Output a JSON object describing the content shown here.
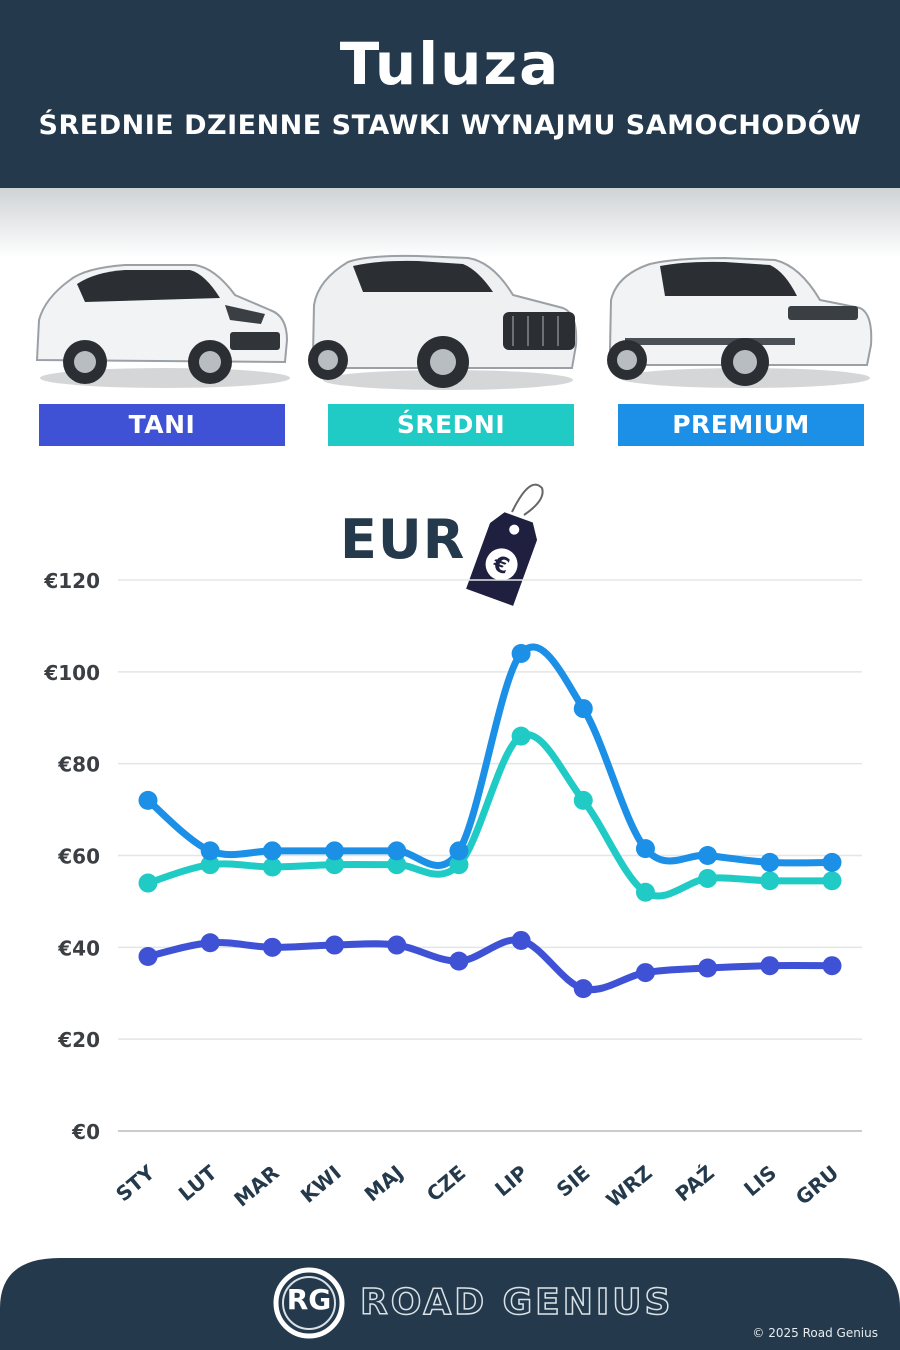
{
  "header": {
    "title": "Tuluza",
    "subtitle": "ŚREDNIE DZIENNE STAWKI WYNAJMU SAMOCHODÓW"
  },
  "categories": [
    {
      "label": "TANI",
      "color": "#3f51d4",
      "icon": "hatchback-car-icon"
    },
    {
      "label": "ŚREDNI",
      "color": "#20cbc6",
      "icon": "suv-car-icon"
    },
    {
      "label": "PREMIUM",
      "color": "#1c8fe6",
      "icon": "luxury-suv-car-icon"
    }
  ],
  "currency": {
    "label": "EUR",
    "icon": "euro-price-tag-icon"
  },
  "chart_data": {
    "type": "line",
    "categories": [
      "STY",
      "LUT",
      "MAR",
      "KWI",
      "MAJ",
      "CZE",
      "LIP",
      "SIE",
      "WRZ",
      "PAŹ",
      "LIS",
      "GRU"
    ],
    "series": [
      {
        "name": "TANI",
        "color": "#3f51d4",
        "values": [
          38,
          41,
          40,
          40.5,
          40.5,
          37,
          41.5,
          31,
          34.5,
          35.5,
          36,
          36
        ]
      },
      {
        "name": "ŚREDNI",
        "color": "#20cbc6",
        "values": [
          54,
          58,
          57.5,
          58,
          58,
          58,
          86,
          72,
          52,
          55,
          54.5,
          54.5
        ]
      },
      {
        "name": "PREMIUM",
        "color": "#1c8fe6",
        "values": [
          72,
          61,
          61,
          61,
          61,
          61,
          104,
          92,
          61.5,
          60,
          58.5,
          58.5
        ]
      }
    ],
    "yticks": [
      "€0",
      "€20",
      "€40",
      "€60",
      "€80",
      "€100",
      "€120"
    ],
    "ylim": [
      0,
      120
    ],
    "grid": true
  },
  "footer": {
    "brand": "ROAD GENIUS",
    "logo_letters": "RG",
    "copyright": "© 2025 Road Genius"
  }
}
